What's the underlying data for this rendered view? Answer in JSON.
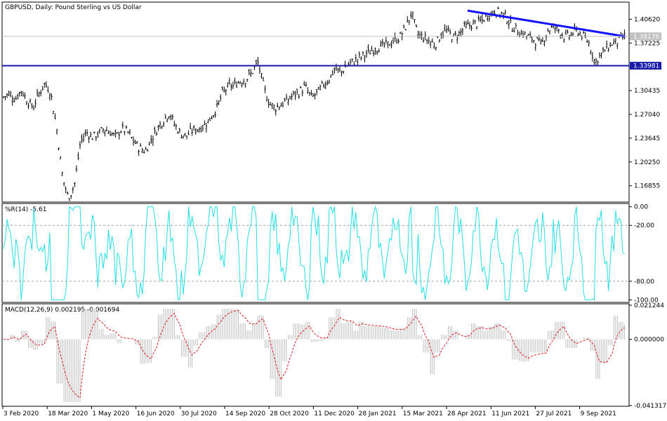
{
  "chart_data": [
    {
      "type": "bar",
      "title": "GBPUSD, Daily:  Pound Sterling vs US Dollar",
      "current_price_label": "1.38176",
      "line_price_label": "1.33981",
      "horizontal_line_price": 1.33981,
      "current_price": 1.38176,
      "ylim": [
        1.1452,
        1.4306
      ],
      "y_ticks": [
        "1.40620",
        "1.37225",
        "1.33981",
        "1.30435",
        "1.27040",
        "1.23645",
        "1.20250",
        "1.16855"
      ],
      "y_tick_values": [
        1.4062,
        1.37225,
        1.33981,
        1.30435,
        1.2704,
        1.23645,
        1.2025,
        1.16855
      ],
      "trendline": [
        {
          "date": "2021-05-04",
          "price": 1.4185
        },
        {
          "date": "2021-10-07",
          "price": 1.3815
        }
      ],
      "x_labels": [
        "3 Feb 2020",
        "18 Mar 2020",
        "1 May 2020",
        "16 Jun 2020",
        "30 Jul 2020",
        "14 Sep 2020",
        "28 Oct 2020",
        "11 Dec 2020",
        "28 Jan 2021",
        "15 Mar 2021",
        "28 Apr 2021",
        "11 Jun 2021",
        "27 Jul 2021",
        "9 Sep 2021"
      ],
      "closes_approx": [
        1.295,
        1.3,
        1.292,
        1.305,
        1.29,
        1.28,
        1.3,
        1.315,
        1.3,
        1.25,
        1.18,
        1.15,
        1.17,
        1.23,
        1.245,
        1.238,
        1.242,
        1.25,
        1.245,
        1.238,
        1.25,
        1.245,
        1.232,
        1.222,
        1.218,
        1.235,
        1.25,
        1.262,
        1.272,
        1.255,
        1.242,
        1.24,
        1.248,
        1.25,
        1.255,
        1.265,
        1.278,
        1.3,
        1.31,
        1.312,
        1.318,
        1.32,
        1.33,
        1.345,
        1.31,
        1.285,
        1.28,
        1.285,
        1.29,
        1.298,
        1.302,
        1.31,
        1.295,
        1.3,
        1.312,
        1.32,
        1.335,
        1.33,
        1.34,
        1.345,
        1.35,
        1.355,
        1.36,
        1.365,
        1.368,
        1.37,
        1.375,
        1.38,
        1.395,
        1.415,
        1.385,
        1.38,
        1.375,
        1.37,
        1.385,
        1.39,
        1.38,
        1.385,
        1.395,
        1.398,
        1.4,
        1.405,
        1.412,
        1.418,
        1.415,
        1.41,
        1.395,
        1.39,
        1.385,
        1.38,
        1.375,
        1.37,
        1.39,
        1.395,
        1.39,
        1.38,
        1.385,
        1.39,
        1.382,
        1.372,
        1.345,
        1.355,
        1.365,
        1.372,
        1.375,
        1.382
      ],
      "panel": "price"
    },
    {
      "type": "line",
      "title": "%R(14) -5.61",
      "y_ticks": [
        "0.00",
        "-20.00",
        "-80.00",
        "-100.00"
      ],
      "ylim": [
        -102,
        2
      ],
      "levels": [
        -20,
        -80
      ],
      "color": "#22e0e6",
      "panel": "williams-r"
    },
    {
      "type": "bar",
      "title": "MACD(12,26,9) 0.002195 -0.001694",
      "y_ticks": [
        "0.021244",
        "0.000000",
        "-0.041317"
      ],
      "ylim": [
        -0.041317,
        0.021244
      ],
      "histogram_color": "#c0c0c0",
      "signal_color": "#e0191f",
      "panel": "macd"
    }
  ],
  "colors": {
    "candle": "#000000",
    "trendline": "#1414ff",
    "hline": "#1a1aaa",
    "label_bg": "#1a1aaa",
    "current_label_bg": "#c0c0c0"
  }
}
